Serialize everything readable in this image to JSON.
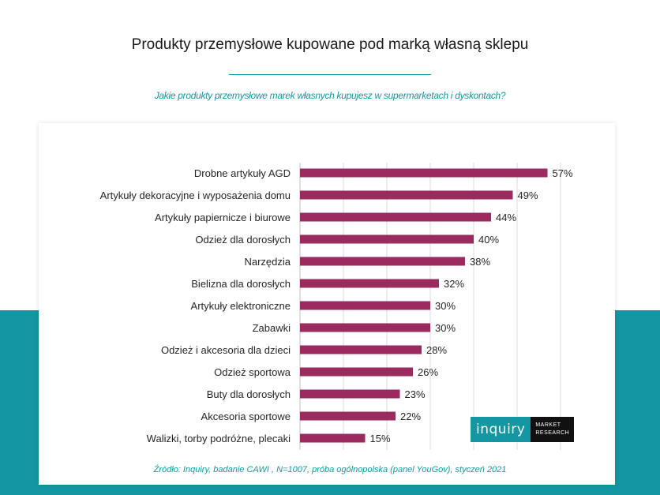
{
  "title": "Produkty przemysłowe kupowane pod marką własną sklepu",
  "question": "Jakie produkty przemysłowe marek własnych kupujesz w supermarketach i dyskontach?",
  "source": "Źródło: Inquiry, badanie CAWI , N=1007, próba ogólnopolska (panel YouGov), styczeń 2021",
  "logo": {
    "brand": "inquiry",
    "line1": "MARKET",
    "line2": "RESEARCH"
  },
  "colors": {
    "bar": "#9b2a5f",
    "accent": "#1497a3",
    "grid": "#d9d9d9"
  },
  "chart_data": {
    "type": "bar",
    "orientation": "horizontal",
    "title": "",
    "xlabel": "",
    "ylabel": "",
    "xlim": [
      0,
      60
    ],
    "grid": true,
    "categories": [
      "Drobne artykuły AGD",
      "Artykuły dekoracyjne i wyposażenia domu",
      "Artykuły papiernicze i biurowe",
      "Odzież dla dorosłych",
      "Narzędzia",
      "Bielizna dla dorosłych",
      "Artykuły elektroniczne",
      "Zabawki",
      "Odzież i akcesoria dla dzieci",
      "Odzież sportowa",
      "Buty dla dorosłych",
      "Akcesoria sportowe",
      "Walizki, torby podróżne, plecaki"
    ],
    "values": [
      57,
      49,
      44,
      40,
      38,
      32,
      30,
      30,
      28,
      26,
      23,
      22,
      15
    ],
    "value_labels": [
      "57%",
      "49%",
      "44%",
      "40%",
      "38%",
      "32%",
      "30%",
      "30%",
      "28%",
      "26%",
      "23%",
      "22%",
      "15%"
    ]
  }
}
